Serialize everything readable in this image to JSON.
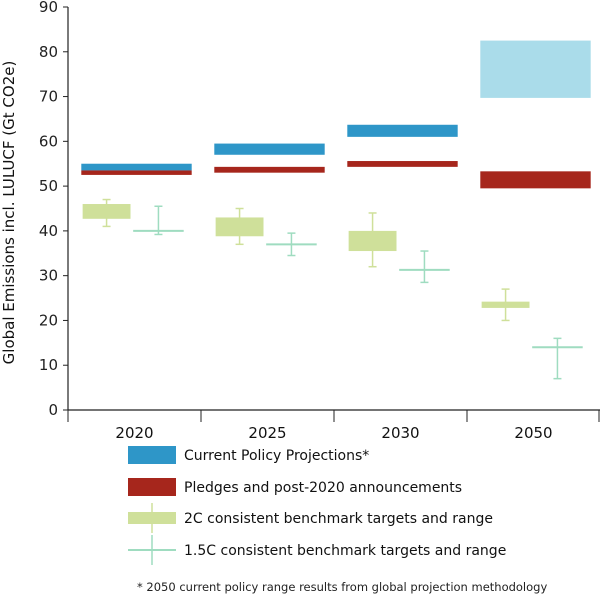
{
  "chart_data": {
    "type": "bar",
    "title": "",
    "xlabel": "",
    "ylabel": "Global Emissions incl. LULUCF (Gt CO2e)",
    "ylim": [
      0,
      90
    ],
    "yticks": [
      0,
      10,
      20,
      30,
      40,
      50,
      60,
      70,
      80,
      90
    ],
    "grid": false,
    "legend_position": "bottom",
    "categories": [
      "2020",
      "2025",
      "2030",
      "2050"
    ],
    "series": [
      {
        "name": "Current Policy Projections*",
        "kind": "range-bar",
        "color": "#2e96c8",
        "color_2050": "#aadcea",
        "ranges": [
          [
            53.5,
            55.0
          ],
          [
            57.0,
            59.5
          ],
          [
            61.0,
            63.7
          ],
          [
            69.7,
            82.5
          ]
        ]
      },
      {
        "name": "Pledges and post-2020 announcements",
        "kind": "range-bar",
        "color": "#a6261c",
        "ranges": [
          [
            52.5,
            53.5
          ],
          [
            53.0,
            54.3
          ],
          [
            54.3,
            55.6
          ],
          [
            49.5,
            53.3
          ]
        ]
      },
      {
        "name": "2C consistent benchmark targets and range",
        "kind": "box-whisker",
        "color": "#cfe09a",
        "box": [
          [
            42.7,
            46.0
          ],
          [
            38.8,
            43.0
          ],
          [
            35.5,
            40.0
          ],
          [
            22.8,
            24.2
          ]
        ],
        "median": [
          44.3,
          40.7,
          37.8,
          23.5
        ],
        "whisker": [
          [
            41.0,
            47.0
          ],
          [
            37.0,
            45.0
          ],
          [
            32.0,
            44.0
          ],
          [
            20.0,
            27.0
          ]
        ]
      },
      {
        "name": "1.5C consistent benchmark targets and range",
        "kind": "cross",
        "color": "#9fdcc0",
        "center": [
          40.0,
          37.0,
          31.3,
          14.0
        ],
        "whisker": [
          [
            39.2,
            45.5
          ],
          [
            34.5,
            39.5
          ],
          [
            28.5,
            35.5
          ],
          [
            7.0,
            16.0
          ]
        ]
      }
    ],
    "footnote": "* 2050 current policy range results from global projection methodology"
  }
}
